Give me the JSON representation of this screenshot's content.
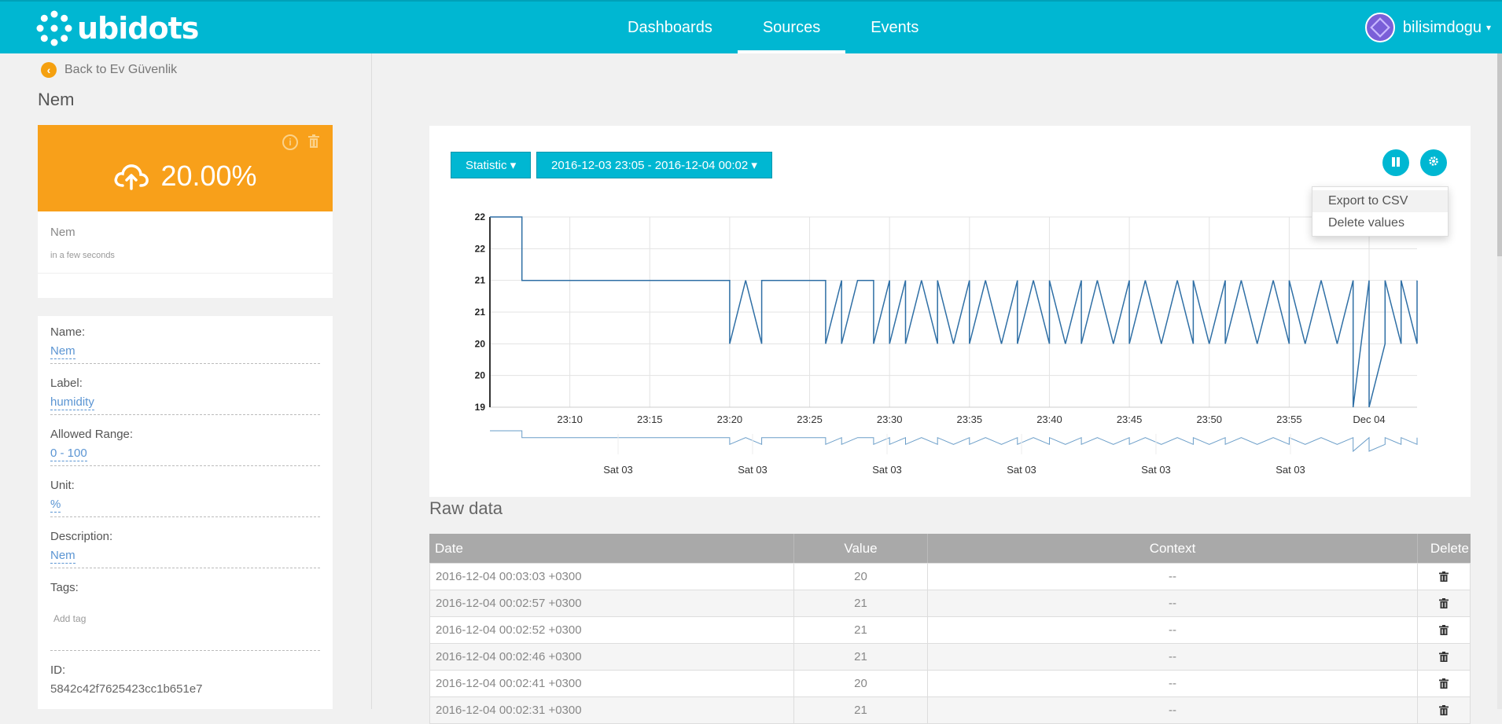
{
  "header": {
    "brand": "ubidots",
    "nav": [
      {
        "label": "Dashboards",
        "active": false
      },
      {
        "label": "Sources",
        "active": true
      },
      {
        "label": "Events",
        "active": false
      }
    ],
    "user": "bilisimdogu"
  },
  "sidebar": {
    "back_label": "Back to Ev Güvenlik",
    "variable_title": "Nem",
    "last_value": "20.00%",
    "card_name": "Nem",
    "card_time": "in a few seconds",
    "properties": [
      {
        "key": "Name:",
        "value": "Nem"
      },
      {
        "key": "Label:",
        "value": "humidity"
      },
      {
        "key": "Allowed Range:",
        "value": "0 - 100"
      },
      {
        "key": "Unit:",
        "value": "%"
      },
      {
        "key": "Description:",
        "value": "Nem"
      },
      {
        "key": "Tags:",
        "value": ""
      }
    ],
    "add_tag_placeholder": "Add tag",
    "id_label": "ID:",
    "id_value": "5842c42f7625423cc1b651e7"
  },
  "chart_panel": {
    "statistic_label": "Statistic",
    "range_label": "2016-12-03 23:05 - 2016-12-04 00:02",
    "menu": [
      "Export to CSV",
      "Delete values"
    ]
  },
  "chart_data": {
    "type": "line",
    "title": "",
    "xlabel": "",
    "ylabel": "",
    "y_tick_labels": [
      "22",
      "22",
      "21",
      "21",
      "20",
      "20",
      "19"
    ],
    "x_tick_labels": [
      "23:10",
      "23:15",
      "23:20",
      "23:25",
      "23:30",
      "23:35",
      "23:40",
      "23:45",
      "23:50",
      "23:55",
      "Dec 04"
    ],
    "navigator_labels": [
      "Sat 03",
      "Sat 03",
      "Sat 03",
      "Sat 03",
      "Sat 03",
      "Sat 03"
    ],
    "ylim": [
      19,
      22
    ],
    "xlim_minutes": [
      "23:05",
      "00:03"
    ],
    "grid": true,
    "series": [
      {
        "color": "#2f6fa5",
        "points": [
          [
            "23:05",
            22
          ],
          [
            "23:07",
            22
          ],
          [
            "23:07",
            21
          ],
          [
            "23:20",
            21
          ],
          [
            "23:20",
            20
          ],
          [
            "23:21",
            21
          ],
          [
            "23:22",
            20
          ],
          [
            "23:22",
            21
          ],
          [
            "23:26",
            21
          ],
          [
            "23:26",
            20
          ],
          [
            "23:27",
            21
          ],
          [
            "23:27",
            20
          ],
          [
            "23:28",
            21
          ],
          [
            "23:29",
            21
          ],
          [
            "23:29",
            20
          ],
          [
            "23:30",
            21
          ],
          [
            "23:30",
            20
          ],
          [
            "23:31",
            21
          ],
          [
            "23:31",
            20
          ],
          [
            "23:32",
            21
          ],
          [
            "23:33",
            20
          ],
          [
            "23:33",
            21
          ],
          [
            "23:34",
            20
          ],
          [
            "23:35",
            21
          ],
          [
            "23:35",
            20
          ],
          [
            "23:36",
            21
          ],
          [
            "23:37",
            20
          ],
          [
            "23:38",
            21
          ],
          [
            "23:38",
            20
          ],
          [
            "23:39",
            21
          ],
          [
            "23:40",
            20
          ],
          [
            "23:40",
            21
          ],
          [
            "23:41",
            20
          ],
          [
            "23:42",
            21
          ],
          [
            "23:42",
            20
          ],
          [
            "23:43",
            21
          ],
          [
            "23:44",
            20
          ],
          [
            "23:45",
            21
          ],
          [
            "23:45",
            20
          ],
          [
            "23:46",
            21
          ],
          [
            "23:47",
            20
          ],
          [
            "23:48",
            21
          ],
          [
            "23:49",
            20
          ],
          [
            "23:49",
            21
          ],
          [
            "23:50",
            20
          ],
          [
            "23:51",
            21
          ],
          [
            "23:51",
            20
          ],
          [
            "23:52",
            21
          ],
          [
            "23:53",
            20
          ],
          [
            "23:54",
            21
          ],
          [
            "23:55",
            20
          ],
          [
            "23:55",
            21
          ],
          [
            "23:56",
            20
          ],
          [
            "23:57",
            21
          ],
          [
            "23:58",
            20
          ],
          [
            "23:59",
            21
          ],
          [
            "23:59",
            19
          ],
          [
            "00:00",
            21
          ],
          [
            "00:00",
            19
          ],
          [
            "00:01",
            20
          ],
          [
            "00:01",
            21
          ],
          [
            "00:02",
            20
          ],
          [
            "00:02",
            21
          ],
          [
            "00:03",
            20
          ],
          [
            "00:03",
            21
          ]
        ]
      }
    ]
  },
  "raw_data": {
    "title": "Raw data",
    "columns": [
      "Date",
      "Value",
      "Context",
      "Delete"
    ],
    "rows": [
      {
        "date": "2016-12-04 00:03:03 +0300",
        "value": "20",
        "context": "--"
      },
      {
        "date": "2016-12-04 00:02:57 +0300",
        "value": "21",
        "context": "--"
      },
      {
        "date": "2016-12-04 00:02:52 +0300",
        "value": "21",
        "context": "--"
      },
      {
        "date": "2016-12-04 00:02:46 +0300",
        "value": "21",
        "context": "--"
      },
      {
        "date": "2016-12-04 00:02:41 +0300",
        "value": "20",
        "context": "--"
      },
      {
        "date": "2016-12-04 00:02:31 +0300",
        "value": "21",
        "context": "--"
      }
    ]
  }
}
